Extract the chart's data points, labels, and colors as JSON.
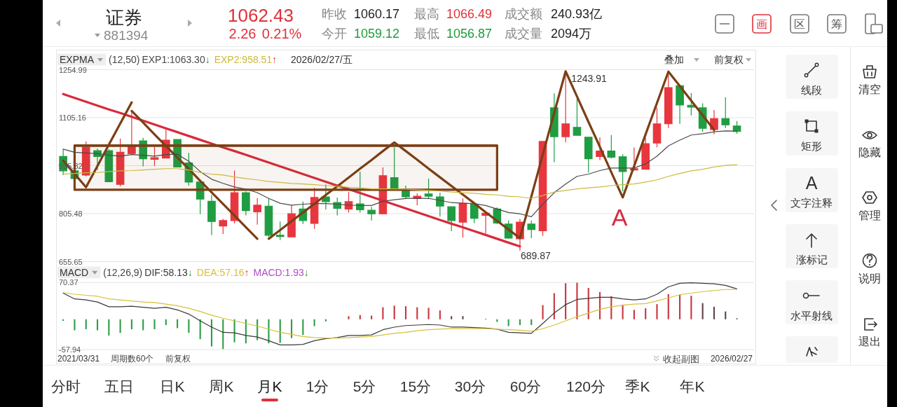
{
  "chart_data": [
    {
      "type": "other",
      "title": "证券",
      "subtitle": "881394",
      "annotations": [
        "1062.43",
        "2.26",
        "0.21%",
        "昨收",
        "1060.17",
        "最高",
        "1066.49",
        "成交额",
        "240.93亿",
        "今开",
        "1059.12",
        "最低",
        "1056.87",
        "成交量",
        "2094万",
        "画",
        "区",
        "筹"
      ]
    },
    {
      "type": "candlestick",
      "title": "EXPMA",
      "subtitle": "(12,50)",
      "categories": [
        null,
        null,
        null,
        null,
        null,
        null,
        null,
        null,
        null,
        null,
        null,
        null,
        null,
        null,
        null,
        null,
        null,
        null,
        null,
        null,
        null,
        null,
        null,
        null,
        null,
        null,
        null,
        null,
        null,
        null,
        null,
        null,
        null,
        null,
        null,
        null,
        null,
        null,
        null,
        null,
        null,
        null,
        null,
        null,
        null,
        null,
        null,
        null,
        null,
        null,
        null,
        null,
        null,
        null,
        null,
        null,
        null,
        null,
        null,
        null
      ],
      "ohlc": [
        [
          984,
          1007,
          926,
          939
        ],
        [
          939,
          942,
          911,
          915
        ],
        [
          926,
          1031,
          922,
          1013
        ],
        [
          1002,
          1009,
          942,
          984
        ],
        [
          1002,
          1006,
          904,
          905
        ],
        [
          897,
          1040,
          891,
          997
        ],
        [
          993,
          1126,
          990,
          1017
        ],
        [
          1033,
          1042,
          953,
          977
        ],
        [
          975,
          1015,
          955,
          980
        ],
        [
          979,
          1068,
          979,
          1035
        ],
        [
          1037,
          1037,
          951,
          951
        ],
        [
          964,
          995,
          893,
          904
        ],
        [
          904,
          904,
          804,
          851
        ],
        [
          844,
          864,
          738,
          781
        ],
        [
          767,
          789,
          742,
          784
        ],
        [
          784,
          940,
          775,
          871
        ],
        [
          871,
          875,
          800,
          815
        ],
        [
          811,
          854,
          771,
          832
        ],
        [
          829,
          853,
          733,
          738
        ],
        [
          738,
          781,
          723,
          734
        ],
        [
          733,
          832,
          733,
          805
        ],
        [
          820,
          843,
          773,
          784
        ],
        [
          775,
          886,
          758,
          856
        ],
        [
          858,
          897,
          818,
          843
        ],
        [
          840,
          856,
          800,
          822
        ],
        [
          820,
          873,
          809,
          843
        ],
        [
          836,
          937,
          809,
          818
        ],
        [
          816,
          827,
          784,
          805
        ],
        [
          805,
          950,
          805,
          924
        ],
        [
          918,
          1012,
          880,
          880
        ],
        [
          882,
          893,
          853,
          858
        ],
        [
          853,
          869,
          832,
          860
        ],
        [
          867,
          915,
          851,
          860
        ],
        [
          858,
          871,
          796,
          829
        ],
        [
          827,
          827,
          751,
          784
        ],
        [
          779,
          853,
          731,
          838
        ],
        [
          835,
          838,
          776,
          791
        ],
        [
          800,
          809,
          743,
          807
        ],
        [
          820,
          825,
          773,
          776
        ],
        [
          773,
          784,
          727,
          729
        ],
        [
          727,
          789,
          689.87,
          779
        ],
        [
          773,
          784,
          729,
          756
        ],
        [
          752,
          1031,
          736,
          1031
        ],
        [
          1136,
          1181,
          966,
          1046
        ],
        [
          1046,
          1243.91,
          1028,
          1086
        ],
        [
          1075,
          1165,
          1050,
          1050
        ],
        [
          1044,
          1044,
          934,
          977
        ],
        [
          984,
          1044,
          973,
          1001
        ],
        [
          1001,
          1051,
          978,
          982
        ],
        [
          983,
          991,
          875,
          937
        ],
        [
          942,
          1012,
          940,
          946
        ],
        [
          944,
          1042,
          944,
          1024
        ],
        [
          1026,
          1137,
          1013,
          1086
        ],
        [
          1086,
          1240,
          1073,
          1199
        ],
        [
          1205,
          1205,
          1086,
          1145
        ],
        [
          1144,
          1182,
          1112,
          1138
        ],
        [
          1136,
          1150,
          1061,
          1072
        ],
        [
          1068,
          1129,
          1053,
          1102
        ],
        [
          1102,
          1169,
          1073,
          1083
        ],
        [
          1079,
          1095,
          1055,
          1062
        ]
      ],
      "colors": [
        "#1f9d42",
        "#1f9d42",
        "#e8363f",
        "#1f9d42",
        "#1f9d42",
        "#e8363f",
        "#e8363f",
        "#1f9d42",
        "#e8363f",
        "#e8363f",
        "#1f9d42",
        "#1f9d42",
        "#1f9d42",
        "#1f9d42",
        "#e8363f",
        "#e8363f",
        "#1f9d42",
        "#e8363f",
        "#1f9d42",
        "#1f9d42",
        "#e8363f",
        "#1f9d42",
        "#e8363f",
        "#1f9d42",
        "#1f9d42",
        "#e8363f",
        "#1f9d42",
        "#1f9d42",
        "#e8363f",
        "#1f9d42",
        "#1f9d42",
        "#e8363f",
        "#1f9d42",
        "#1f9d42",
        "#1f9d42",
        "#e8363f",
        "#1f9d42",
        "#e8363f",
        "#1f9d42",
        "#1f9d42",
        "#e8363f",
        "#1f9d42",
        "#e8363f",
        "#1f9d42",
        "#e8363f",
        "#1f9d42",
        "#1f9d42",
        "#e8363f",
        "#1f9d42",
        "#1f9d42",
        "#e8363f",
        "#e8363f",
        "#e8363f",
        "#e8363f",
        "#1f9d42",
        "#1f9d42",
        "#1f9d42",
        "#e8363f",
        "#1f9d42",
        "#1f9d42"
      ],
      "series": [
        {
          "name": "EXP1:1063.30↓",
          "type": "line",
          "color": "#4a4a4a",
          "values": [
            1007,
            997,
            995,
            993,
            988,
            985,
            990,
            988,
            985,
            990,
            991,
            969,
            937,
            913,
            900,
            889,
            882,
            871,
            853,
            838,
            832,
            835,
            837,
            837,
            835,
            832,
            831,
            831,
            844,
            849,
            853,
            854,
            853,
            847,
            840,
            838,
            837,
            831,
            820,
            809,
            805,
            796,
            835,
            871,
            898,
            922,
            929,
            940,
            948,
            948,
            948,
            961,
            985,
            1017,
            1035,
            1051,
            1055,
            1061,
            1064,
            1063.3
          ]
        },
        {
          "name": "EXP2:958.51↑",
          "type": "line",
          "color": "#cdb93e",
          "values": [
            929,
            931,
            933,
            934,
            937,
            939,
            940,
            942,
            944,
            946,
            946,
            942,
            934,
            929,
            926,
            920,
            915,
            911,
            906,
            903,
            900,
            898,
            896,
            893,
            891,
            888,
            886,
            883,
            883,
            883,
            882,
            880,
            878,
            876,
            873,
            871,
            869,
            866,
            864,
            860,
            858,
            853,
            862,
            873,
            878,
            883,
            886,
            889,
            893,
            896,
            898,
            904,
            911,
            922,
            931,
            939,
            944,
            951,
            956,
            958.51
          ]
        },
        {
          "type": "line",
          "color": "#d92a3c",
          "values": [
            1179,
            1167,
            1155,
            1143,
            1131,
            1120,
            1108,
            1096,
            1084,
            1072,
            1060,
            1048,
            1036,
            1024,
            1012,
            1001,
            989,
            977,
            965,
            953,
            941,
            929,
            917,
            905,
            893,
            882,
            870,
            858,
            846,
            834,
            822,
            810,
            798,
            786,
            774,
            763,
            751,
            739,
            727,
            715,
            703,
            null,
            null,
            null,
            null,
            null,
            null,
            null,
            null,
            null,
            null,
            null,
            null,
            null,
            null,
            null,
            null,
            null,
            null,
            null
          ]
        },
        {
          "type": "line",
          "color": "#7b3f14",
          "values": [
            971,
            930,
            888,
            954,
            1021,
            1087,
            1153,
            null,
            null,
            null,
            null,
            null,
            null,
            null,
            null,
            null,
            null,
            null,
            null,
            null,
            null,
            null,
            null,
            null,
            null,
            null,
            null,
            null,
            null,
            null,
            null,
            null,
            null,
            null,
            null,
            null,
            null,
            null,
            null,
            null,
            null,
            null,
            null,
            null,
            null,
            null,
            null,
            null,
            null,
            null,
            null,
            null,
            null,
            null,
            null,
            null,
            null,
            null,
            null,
            null
          ]
        },
        {
          "type": "line",
          "color": "#7b3f14",
          "values": [
            null,
            null,
            null,
            null,
            null,
            null,
            1126,
            1090,
            1053,
            1017,
            981,
            945,
            908,
            872,
            836,
            800,
            763,
            727,
            null,
            null,
            null,
            null,
            null,
            null,
            null,
            null,
            null,
            null,
            null,
            null,
            null,
            null,
            null,
            null,
            null,
            null,
            null,
            null,
            null,
            null,
            null,
            null,
            null,
            null,
            null,
            null,
            null,
            null,
            null,
            null,
            null,
            null,
            null,
            null,
            null,
            null,
            null,
            null,
            null,
            null
          ]
        },
        {
          "type": "line",
          "color": "#7b3f14",
          "values": [
            null,
            null,
            null,
            null,
            null,
            null,
            null,
            null,
            null,
            null,
            null,
            null,
            null,
            null,
            null,
            null,
            null,
            null,
            727,
            754,
            782,
            809,
            836,
            864,
            891,
            918,
            946,
            973,
            1001,
            1028,
            1001,
            974,
            946,
            919,
            892,
            865,
            838,
            810,
            783,
            756,
            729,
            859,
            990,
            1120,
            1250,
            1171,
            1092,
            1014,
            935,
            856,
            954,
            1053,
            1151,
            1249,
            1204,
            1158,
            1113,
            1067,
            null,
            null
          ]
        },
        {
          "type": "line",
          "color": "#7b3f14",
          "values": [
            null,
            1018,
            1018,
            1018,
            1018,
            1018,
            1018,
            1018,
            1018,
            1018,
            1018,
            1018,
            1018,
            1018,
            1018,
            1018,
            1018,
            1018,
            1018,
            1018,
            1018,
            1018,
            1018,
            1018,
            1018,
            1018,
            1018,
            1018,
            1018,
            1018,
            1018,
            1018,
            1018,
            1018,
            1018,
            1018,
            1018,
            1018,
            1018,
            null,
            null,
            null,
            null,
            null,
            null,
            null,
            null,
            null,
            null,
            null,
            null,
            null,
            null,
            null,
            null,
            null,
            null,
            null,
            null,
            null
          ],
          "upper": [
            null,
            1018,
            1018,
            1018,
            1018,
            1018,
            1018,
            1018,
            1018,
            1018,
            1018,
            1018,
            1018,
            1018,
            1018,
            1018,
            1018,
            1018,
            1018,
            1018,
            1018,
            1018,
            1018,
            1018,
            1018,
            1018,
            1018,
            1018,
            1018,
            1018,
            1018,
            1018,
            1018,
            1018,
            1018,
            1018,
            1018,
            1018,
            1018,
            null,
            null,
            null,
            null,
            null,
            null,
            null,
            null,
            null,
            null,
            null,
            null,
            null,
            null,
            null,
            null,
            null,
            null,
            null,
            null,
            null
          ],
          "lower": [
            null,
            880,
            880,
            880,
            880,
            880,
            880,
            880,
            880,
            880,
            880,
            880,
            880,
            880,
            880,
            880,
            880,
            880,
            880,
            880,
            880,
            880,
            880,
            880,
            880,
            880,
            880,
            880,
            880,
            880,
            880,
            880,
            880,
            880,
            880,
            880,
            880,
            880,
            880,
            null,
            null,
            null,
            null,
            null,
            null,
            null,
            null,
            null,
            null,
            null,
            null,
            null,
            null,
            null,
            null,
            null,
            null,
            null,
            null,
            null
          ]
        }
      ],
      "ylim": [
        655.65,
        1254.99
      ],
      "yticks": [
        655.65,
        805.48,
        955.32,
        1105.16,
        1254.99
      ],
      "grid": "y",
      "legend": "top left",
      "tick_labels": "y",
      "annotations": [
        "2026/02/27/五",
        "叠加",
        "前复权",
        "A",
        "1243.91",
        "689.87"
      ]
    },
    {
      "type": "bar",
      "title": "MACD",
      "subtitle": "(12,26,9)",
      "categories": [
        null,
        null,
        null,
        null,
        null,
        null,
        null,
        null,
        null,
        null,
        null,
        null,
        null,
        null,
        null,
        null,
        null,
        null,
        null,
        null,
        null,
        null,
        null,
        null,
        null,
        null,
        null,
        null,
        null,
        null,
        null,
        null,
        null,
        null,
        null,
        null,
        null,
        null,
        null,
        null,
        null,
        null,
        null,
        null,
        null,
        null,
        null,
        null,
        null,
        null,
        null,
        null,
        null,
        null,
        null,
        null,
        null,
        null,
        null,
        null
      ],
      "series": [
        {
          "name": "DIF:58.13↓",
          "type": "line",
          "color": "#3a3a3a",
          "values": [
            50,
            39,
            37,
            33,
            24,
            24,
            25,
            23,
            21,
            23,
            18,
            10,
            -3,
            -15,
            -25,
            -26,
            -31,
            -34,
            -41,
            -49,
            -49,
            -48,
            -41,
            -37,
            -35,
            -31,
            -31,
            -30,
            -20,
            -15,
            -12,
            -11,
            -10,
            -11,
            -15,
            -15,
            -16,
            -17,
            -19,
            -25,
            -26,
            -27,
            -8,
            12,
            28,
            38,
            40,
            42,
            42,
            39,
            37,
            39,
            48,
            62,
            69,
            70,
            69,
            68,
            65,
            58.13
          ]
        },
        {
          "name": "DEA:57.16↑",
          "type": "line",
          "color": "#d6c03a",
          "values": [
            51,
            48,
            46,
            44,
            39,
            37,
            35,
            33,
            32,
            29,
            26,
            21,
            15,
            8,
            2,
            -3,
            -8,
            -13,
            -19,
            -25,
            -29,
            -33,
            -35,
            -36,
            -36,
            -35,
            -34,
            -33,
            -30,
            -27,
            -25,
            -22,
            -20,
            -19,
            -18,
            -18,
            -18,
            -18,
            -19,
            -20,
            -21,
            -23,
            -18,
            -11,
            -3,
            5,
            12,
            19,
            24,
            27,
            29,
            30,
            35,
            41,
            47,
            50,
            53,
            55,
            57,
            57.16
          ]
        },
        {
          "type": "bar",
          "values": [
            -3,
            -21,
            -19,
            -21,
            -31,
            -26,
            -19,
            -21,
            -19,
            -11,
            -17,
            -26,
            -38,
            -52,
            -57,
            -44,
            -46,
            -40,
            -46,
            -45,
            -36,
            -30,
            -13,
            -4,
            null,
            6,
            8,
            7,
            23,
            26,
            25,
            23,
            22,
            17,
            6,
            6,
            null,
            1,
            -5,
            -13,
            -11,
            -11,
            27,
            50,
            69,
            70,
            60,
            52,
            44,
            28,
            18,
            21,
            29,
            48,
            47,
            45,
            31,
            24,
            15,
            1.93
          ],
          "colors": [
            "#2e9e48",
            "#2e9e48",
            "#2e9e48",
            "#2e9e48",
            "#2e9e48",
            "#2e9e48",
            "#2e9e48",
            "#2e9e48",
            "#2e9e48",
            "#2e9e48",
            "#2e9e48",
            "#2e9e48",
            "#2e9e48",
            "#2e9e48",
            "#2e9e48",
            "#2e9e48",
            "#2e9e48",
            "#2e9e48",
            "#2e9e48",
            "#2e9e48",
            "#2e9e48",
            "#2e9e48",
            "#2e9e48",
            "#2e9e48",
            null,
            "#c8363f",
            "#c8363f",
            "#c8363f",
            "#c8363f",
            "#c8363f",
            "#c8363f",
            "#c8363f",
            "#c8363f",
            "#c8363f",
            "#5e4649",
            "#5e4649",
            null,
            "#5e4649",
            "#2e9e48",
            "#2e9e48",
            "#2e9e48",
            "#2e9e48",
            "#c8363f",
            "#c8363f",
            "#c8363f",
            "#c8363f",
            "#c8363f",
            "#c8363f",
            "#c8363f",
            "#c8363f",
            "#c8363f",
            "#c8363f",
            "#c8363f",
            "#c8363f",
            "#c8363f",
            "#c8363f",
            "#5e4649",
            "#5e4649",
            "#5e4649",
            "#5e4649"
          ]
        }
      ],
      "ylim": [
        -57.94,
        70.37
      ],
      "yticks": [
        -57.94,
        70.37
      ],
      "grid": "y",
      "legend": "top left",
      "tick_labels": "y",
      "annotations": [
        "MACD:1.93↓",
        "2021/03/31",
        "周期数60个",
        "前复权",
        "收起副图",
        "2026/02/27"
      ]
    },
    {
      "type": "other",
      "annotations": [
        "线段",
        "矩形",
        "A",
        "文字注释",
        "涨标记",
        "水平射线",
        "清空",
        "隐藏",
        "管理",
        "说明",
        "退出"
      ]
    },
    {
      "type": "other",
      "annotations": [
        "分时",
        "五日",
        "日K",
        "周K",
        "月K",
        "1分",
        "5分",
        "15分",
        "30分",
        "60分",
        "120分",
        "季K",
        "年K"
      ]
    }
  ]
}
